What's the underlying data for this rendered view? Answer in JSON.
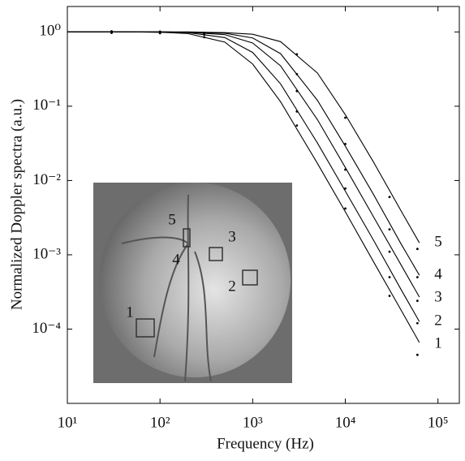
{
  "chart_data": {
    "type": "line",
    "xscale": "log",
    "yscale": "log",
    "x_label": "Frequency (Hz)",
    "y_label": "Normalized Doppler spectra (a.u.)",
    "x": [
      10,
      20,
      50,
      100,
      200,
      500,
      1000,
      2000,
      5000,
      10000,
      20000,
      40000,
      63000
    ],
    "dot_x": [
      30,
      100,
      300,
      3000,
      10000,
      30000,
      60000
    ],
    "series": [
      {
        "name": "1",
        "color": "#000000",
        "values": [
          1.0,
          1.0,
          1.0,
          0.99,
          0.95,
          0.73,
          0.37,
          0.115,
          0.017,
          0.0038,
          0.00082,
          0.00018,
          6.6e-05
        ],
        "dot_values": [
          1.02,
          0.96,
          0.85,
          0.055,
          0.0042,
          0.00028,
          4.5e-05
        ]
      },
      {
        "name": "2",
        "color": "#000000",
        "values": [
          1.0,
          1.0,
          1.0,
          0.99,
          0.98,
          0.84,
          0.53,
          0.2,
          0.032,
          0.0072,
          0.0016,
          0.00034,
          0.000126
        ],
        "dot_values": [
          0.98,
          0.97,
          0.92,
          0.085,
          0.0078,
          0.0005,
          0.00012
        ]
      },
      {
        "name": "3",
        "color": "#000000",
        "values": [
          1.0,
          1.0,
          1.0,
          1.0,
          0.99,
          0.92,
          0.71,
          0.35,
          0.066,
          0.015,
          0.0033,
          0.00073,
          0.00027
        ],
        "dot_values": [
          1.0,
          1.01,
          0.93,
          0.16,
          0.014,
          0.0011,
          0.00024
        ]
      },
      {
        "name": "4",
        "color": "#000000",
        "values": [
          1.0,
          1.0,
          1.0,
          1.0,
          0.99,
          0.96,
          0.83,
          0.51,
          0.12,
          0.029,
          0.0066,
          0.0014,
          0.00053
        ],
        "dot_values": [
          0.97,
          1.0,
          0.95,
          0.27,
          0.031,
          0.0022,
          0.0005
        ]
      },
      {
        "name": "5",
        "color": "#000000",
        "values": [
          1.0,
          1.0,
          1.0,
          1.0,
          1.0,
          0.98,
          0.93,
          0.74,
          0.28,
          0.077,
          0.018,
          0.0039,
          0.00145
        ],
        "dot_values": [
          1.0,
          0.98,
          0.97,
          0.5,
          0.07,
          0.006,
          0.0012
        ]
      }
    ],
    "xlim": [
      10,
      170000
    ],
    "ylim": [
      1e-05,
      2.2
    ],
    "xticks": [
      {
        "value": 10,
        "label": "10¹"
      },
      {
        "value": 100,
        "label": "10²"
      },
      {
        "value": 1000,
        "label": "10³"
      },
      {
        "value": 10000,
        "label": "10⁴"
      },
      {
        "value": 100000,
        "label": "10⁵"
      }
    ],
    "yticks": [
      {
        "value": 1,
        "label": "10⁰"
      },
      {
        "value": 0.1,
        "label": "10⁻¹"
      },
      {
        "value": 0.01,
        "label": "10⁻²"
      },
      {
        "value": 0.001,
        "label": "10⁻³"
      },
      {
        "value": 0.0001,
        "label": "10⁻⁴"
      }
    ],
    "inset": {
      "labels": [
        "1",
        "2",
        "3",
        "4",
        "5"
      ]
    }
  }
}
